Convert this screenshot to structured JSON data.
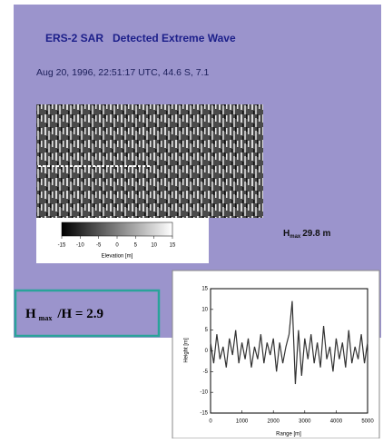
{
  "header": {
    "title": "ERS-2 SAR   Detected Extreme Wave",
    "subtitle": "Aug 20, 1996, 22:51:17 UTC, 44.6 S, 7.1"
  },
  "colorbar": {
    "ticks": [
      -15,
      -10,
      -5,
      0,
      5,
      10,
      15
    ],
    "label": "Elevation [m]"
  },
  "wave_height": {
    "symbol": "H",
    "subscript": "max",
    "value": "29.8 m"
  },
  "ratio_box": {
    "symbol": "H",
    "subscript": "max",
    "text": "/H = 2.9"
  },
  "inset_plot": {
    "type": "line",
    "xlabel": "Range [m]",
    "ylabel": "Height [m]",
    "xlim": [
      0,
      5000
    ],
    "xticks": [
      0,
      1000,
      2000,
      3000,
      4000,
      5000
    ],
    "ylim": [
      -15,
      15
    ],
    "yticks": [
      -15,
      -10,
      -5,
      0,
      5,
      10,
      15
    ],
    "x": [
      0,
      100,
      200,
      300,
      400,
      500,
      600,
      700,
      800,
      900,
      1000,
      1100,
      1200,
      1300,
      1400,
      1500,
      1600,
      1700,
      1800,
      1900,
      2000,
      2100,
      2200,
      2300,
      2400,
      2500,
      2600,
      2700,
      2800,
      2900,
      3000,
      3100,
      3200,
      3300,
      3400,
      3500,
      3600,
      3700,
      3800,
      3900,
      4000,
      4100,
      4200,
      4300,
      4400,
      4500,
      4600,
      4700,
      4800,
      4900,
      5000
    ],
    "values": [
      2,
      -3,
      4,
      -2,
      1,
      -4,
      3,
      -1,
      5,
      -3,
      2,
      -2,
      3,
      -4,
      1,
      -2,
      4,
      -3,
      2,
      -1,
      3,
      -5,
      2,
      -3,
      1,
      4,
      12,
      -8,
      5,
      -6,
      3,
      -2,
      4,
      -3,
      2,
      -4,
      6,
      -2,
      1,
      -5,
      3,
      -2,
      2,
      -4,
      5,
      -3,
      1,
      -2,
      4,
      -3,
      2
    ],
    "color": "#333333"
  }
}
